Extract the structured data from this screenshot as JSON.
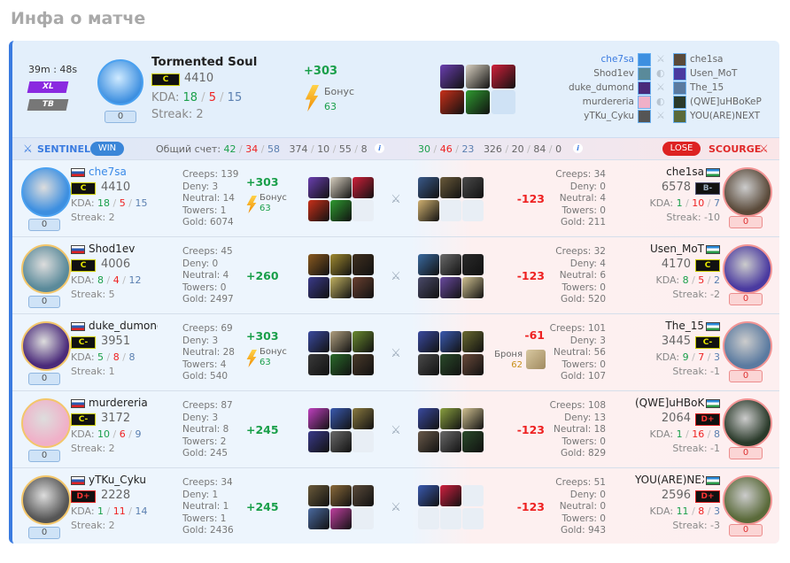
{
  "page_title": "Инфа о матче",
  "match": {
    "duration": "39m : 48s",
    "mode_badges": [
      "XL",
      "TB"
    ],
    "hero": {
      "name": "Tormented Soul",
      "rank": "C",
      "rating": "4410",
      "kda_label": "KDA:",
      "k": "18",
      "d": "5",
      "a": "15",
      "streak": "Streak: 2",
      "score": "0",
      "delta": "+303",
      "bonus_label": "Бонус",
      "bonus": "63"
    },
    "hero_items": [
      "#6a3fb0",
      "#d8d0c0",
      "#d0203a",
      "#c8301a",
      "#2f9a30",
      ""
    ],
    "sentinel_list": [
      "che7sa",
      "Shod1ev",
      "duke_dumond",
      "murdereria",
      "yTKu_Cyku"
    ],
    "scourge_list": [
      "che1sa",
      "Usen_MoT",
      "The_15",
      "(QWE]uHBoKeP",
      "YOU(ARE)NEXT"
    ]
  },
  "teams": {
    "sentinel": {
      "name": "SENTINEL",
      "result": "WIN",
      "score_label": "Общий счет:",
      "k": "42",
      "d": "34",
      "a": "58",
      "extra": [
        "374",
        "10",
        "55",
        "8"
      ]
    },
    "scourge": {
      "name": "SCOURGE",
      "result": "LOSE",
      "k": "30",
      "d": "46",
      "a": "23",
      "extra": [
        "326",
        "20",
        "84",
        "0"
      ]
    },
    "colors": {
      "sentinel": "#3a7be0",
      "scourge": "#e02828"
    }
  },
  "sentinel": [
    {
      "name": "che7sa",
      "rank": "C",
      "rating": "4410",
      "k": "18",
      "d": "5",
      "a": "15",
      "streak": "Streak: 2",
      "score": "0",
      "creeps": "Creeps: 139",
      "deny": "Deny: 3",
      "neutral": "Neutral: 14",
      "towers": "Towers: 1",
      "gold": "Gold: 6074",
      "delta": "+303",
      "bonus_label": "Бонус",
      "bonus": "63",
      "avatar": "#3d8fe0",
      "items": [
        "#6a3fb0",
        "#d8d0c0",
        "#d0203a",
        "#c8301a",
        "#2f9a30",
        ""
      ]
    },
    {
      "name": "Shod1ev",
      "rank": "C",
      "rating": "4006",
      "k": "8",
      "d": "4",
      "a": "12",
      "streak": "Streak: 5",
      "score": "0",
      "creeps": "Creeps: 45",
      "deny": "Deny: 0",
      "neutral": "Neutral: 4",
      "towers": "Towers: 0",
      "gold": "Gold: 2497",
      "delta": "+260",
      "avatar": "#5a8a9a",
      "items": [
        "#8a5a20",
        "#a08a30",
        "#403020",
        "#3a3a8a",
        "#c0b060",
        "#6a4030"
      ]
    },
    {
      "name": "duke_dumond",
      "rank": "C-",
      "rating": "3951",
      "k": "5",
      "d": "8",
      "a": "8",
      "streak": "Streak: 1",
      "score": "0",
      "creeps": "Creeps: 69",
      "deny": "Deny: 3",
      "neutral": "Neutral: 28",
      "towers": "Towers: 4",
      "gold": "Gold: 540",
      "delta": "+303",
      "bonus_label": "Бонус",
      "bonus": "63",
      "avatar": "#4a2a7a",
      "items": [
        "#3a4aa0",
        "#b0a080",
        "#6a8a30",
        "#3a3a3a",
        "#2a6a2a",
        "#4a3a2a"
      ]
    },
    {
      "name": "murdereria",
      "rank": "C-",
      "rating": "3172",
      "k": "10",
      "d": "6",
      "a": "9",
      "streak": "Streak: 2",
      "score": "0",
      "creeps": "Creeps: 87",
      "deny": "Deny: 3",
      "neutral": "Neutral: 8",
      "towers": "Towers: 2",
      "gold": "Gold: 245",
      "delta": "+245",
      "avatar": "#f0b0c8",
      "items": [
        "#c040c0",
        "#3a5ab0",
        "#8a7a40",
        "#3a3a8a",
        "#6a6a6a",
        ""
      ]
    },
    {
      "name": "yTKu_Cyku",
      "rank": "D+",
      "rating": "2228",
      "k": "1",
      "d": "11",
      "a": "14",
      "streak": "Streak: 2",
      "score": "0",
      "creeps": "Creeps: 34",
      "deny": "Deny: 1",
      "neutral": "Neutral: 1",
      "towers": "Towers: 1",
      "gold": "Gold: 2436",
      "delta": "+245",
      "avatar": "#555555",
      "items": [
        "#6a5a3a",
        "#8a6a3a",
        "#5a4a3a",
        "#4a6aa0",
        "#c040a0",
        ""
      ]
    }
  ],
  "scourge": [
    {
      "name": "che1sa",
      "rank": "B-",
      "rating": "6578",
      "k": "1",
      "d": "10",
      "a": "7",
      "streak": "Streak: -10",
      "score": "0",
      "creeps": "Creeps: 34",
      "deny": "Deny: 0",
      "neutral": "Neutral: 4",
      "towers": "Towers: 0",
      "gold": "Gold: 211",
      "delta": "-123",
      "avatar": "#5a4a3a",
      "items": [
        "#3a5a8a",
        "#6a5a3a",
        "#4a4a4a",
        "#d0b070",
        "",
        ""
      ]
    },
    {
      "name": "Usen_MoT",
      "rank": "C",
      "rating": "4170",
      "k": "8",
      "d": "5",
      "a": "2",
      "streak": "Streak: -2",
      "score": "0",
      "creeps": "Creeps: 32",
      "deny": "Deny: 4",
      "neutral": "Neutral: 6",
      "towers": "Towers: 0",
      "gold": "Gold: 520",
      "delta": "-123",
      "avatar": "#4a3aa0",
      "items": [
        "#3a6aa0",
        "#6a6a6a",
        "#2a2a2a",
        "#4a4a6a",
        "#6a4aa0",
        "#d0c090"
      ]
    },
    {
      "name": "The_15",
      "rank": "C-",
      "rating": "3445",
      "k": "9",
      "d": "7",
      "a": "3",
      "streak": "Streak: -1",
      "score": "0",
      "creeps": "Creeps: 101",
      "deny": "Deny: 3",
      "neutral": "Neutral: 56",
      "towers": "Towers: 0",
      "gold": "Gold: 107",
      "delta": "-61",
      "armor_label": "Броня",
      "armor": "62",
      "avatar": "#5a7aa0",
      "items": [
        "#3a4aa0",
        "#3a5ab0",
        "#6a6a30",
        "#4a4a4a",
        "#2a4a2a",
        "#6a4a3a"
      ]
    },
    {
      "name": "(QWE]uHBoKeP",
      "rank": "D+",
      "rating": "2064",
      "k": "1",
      "d": "16",
      "a": "8",
      "streak": "Streak: -1",
      "score": "0",
      "creeps": "Creeps: 108",
      "deny": "Deny: 13",
      "neutral": "Neutral: 18",
      "towers": "Towers: 0",
      "gold": "Gold: 829",
      "delta": "-123",
      "avatar": "#2a3a2a",
      "items": [
        "#3a4aa0",
        "#8aa040",
        "#d0c090",
        "#6a5a4a",
        "#6a6a6a",
        "#2a4a2a"
      ]
    },
    {
      "name": "YOU(ARE)NEXT",
      "rank": "D+",
      "rating": "2596",
      "k": "11",
      "d": "8",
      "a": "3",
      "streak": "Streak: -3",
      "score": "0",
      "creeps": "Creeps: 51",
      "deny": "Deny: 0",
      "neutral": "Neutral: 0",
      "towers": "Towers: 0",
      "gold": "Gold: 943",
      "delta": "-123",
      "avatar": "#5a6a3a",
      "items": [
        "#3a5ab0",
        "#d02040",
        "",
        "",
        "",
        ""
      ]
    }
  ],
  "labels": {
    "kda": "KDA:",
    "sep": "/"
  }
}
